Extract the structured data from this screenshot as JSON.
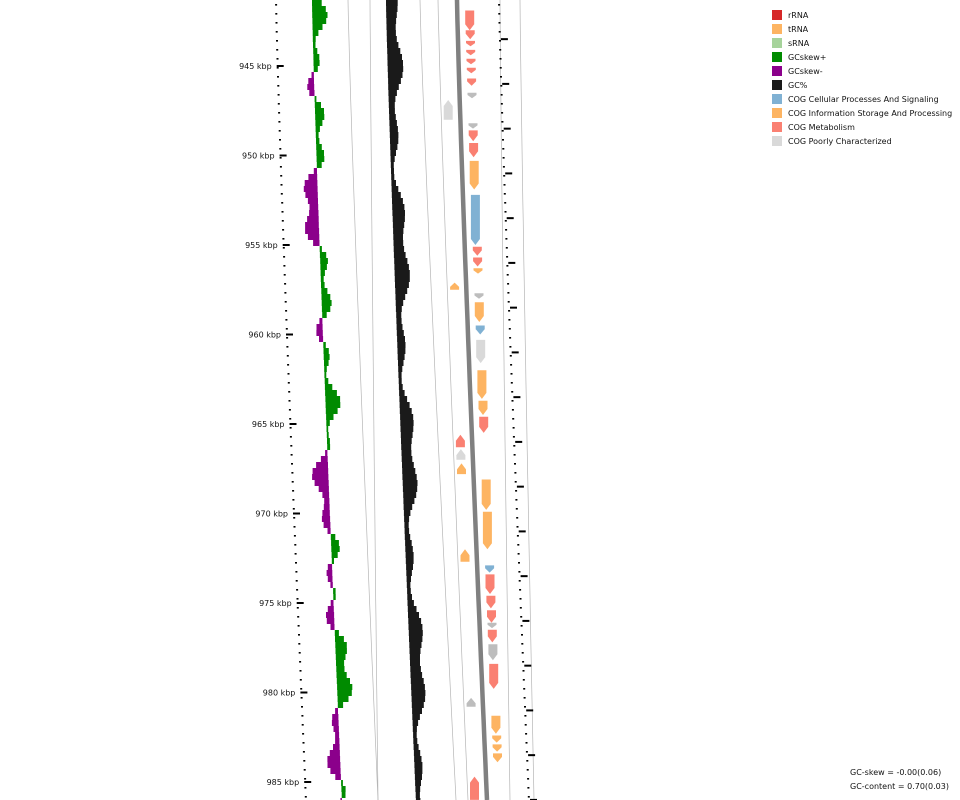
{
  "colors": {
    "rRNA": "#d62728",
    "tRNA": "#fdb462",
    "sRNA": "#a6d39b",
    "gc_skew_pos": "#008b00",
    "gc_skew_neg": "#8b008b",
    "gc_content": "#1a1a1a",
    "cog_cellular": "#80b1d3",
    "cog_information": "#fdb462",
    "cog_metabolism": "#fa8072",
    "cog_poorly": "#d9d9d9",
    "cog_unknown": "#bdbdbd",
    "backbone": "#808080"
  },
  "axis": {
    "ticks": [
      {
        "value": 945,
        "label": "945 kbp"
      },
      {
        "value": 950,
        "label": "950 kbp"
      },
      {
        "value": 955,
        "label": "955 kbp"
      },
      {
        "value": 960,
        "label": "960 kbp"
      },
      {
        "value": 965,
        "label": "965 kbp"
      },
      {
        "value": 970,
        "label": "970 kbp"
      },
      {
        "value": 975,
        "label": "975 kbp"
      },
      {
        "value": 980,
        "label": "980 kbp"
      },
      {
        "value": 985,
        "label": "985 kbp"
      }
    ]
  },
  "legend": [
    {
      "label": "rRNA",
      "color": "#d62728"
    },
    {
      "label": "tRNA",
      "color": "#fdb462"
    },
    {
      "label": "sRNA",
      "color": "#a6d39b"
    },
    {
      "label": "GCskew+",
      "color": "#008b00"
    },
    {
      "label": "GCskew-",
      "color": "#8b008b"
    },
    {
      "label": "GC%",
      "color": "#1a1a1a"
    },
    {
      "label": "COG Cellular Processes And Signaling",
      "color": "#80b1d3"
    },
    {
      "label": "COG Information Storage And Processing",
      "color": "#fdb462"
    },
    {
      "label": "COG Metabolism",
      "color": "#fa8072"
    },
    {
      "label": "COG Poorly Characterized",
      "color": "#d9d9d9"
    }
  ],
  "stats": {
    "gc_skew": "GC-skew = -0.00(0.06)",
    "gc_content": "GC-content = 0.70(0.03)"
  },
  "genes": [
    {
      "kbp": 941.0,
      "len": 0.4,
      "strand": -1,
      "cat": "metabolism"
    },
    {
      "kbp": 941.9,
      "len": 1.1,
      "strand": 1,
      "cat": "metabolism"
    },
    {
      "kbp": 943.0,
      "len": 0.5,
      "strand": 1,
      "cat": "metabolism"
    },
    {
      "kbp": 943.6,
      "len": 0.3,
      "strand": 1,
      "cat": "metabolism"
    },
    {
      "kbp": 944.1,
      "len": 0.3,
      "strand": 1,
      "cat": "metabolism"
    },
    {
      "kbp": 944.6,
      "len": 0.3,
      "strand": 1,
      "cat": "metabolism"
    },
    {
      "kbp": 945.1,
      "len": 0.3,
      "strand": 1,
      "cat": "metabolism"
    },
    {
      "kbp": 945.7,
      "len": 0.4,
      "strand": 1,
      "cat": "metabolism"
    },
    {
      "kbp": 946.5,
      "len": 0.3,
      "strand": 1,
      "cat": "unknown"
    },
    {
      "kbp": 946.9,
      "len": 1.1,
      "strand": -1,
      "cat": "poorly"
    },
    {
      "kbp": 948.2,
      "len": 0.3,
      "strand": 1,
      "cat": "unknown"
    },
    {
      "kbp": 948.6,
      "len": 0.6,
      "strand": 1,
      "cat": "metabolism"
    },
    {
      "kbp": 949.3,
      "len": 0.8,
      "strand": 1,
      "cat": "metabolism"
    },
    {
      "kbp": 950.3,
      "len": 1.6,
      "strand": 1,
      "cat": "information"
    },
    {
      "kbp": 952.2,
      "len": 2.8,
      "strand": 1,
      "cat": "cellular"
    },
    {
      "kbp": 955.1,
      "len": 0.5,
      "strand": 1,
      "cat": "metabolism"
    },
    {
      "kbp": 955.7,
      "len": 0.5,
      "strand": 1,
      "cat": "metabolism"
    },
    {
      "kbp": 956.3,
      "len": 0.3,
      "strand": 1,
      "cat": "information"
    },
    {
      "kbp": 957.1,
      "len": 0.4,
      "strand": -1,
      "cat": "information"
    },
    {
      "kbp": 957.7,
      "len": 0.3,
      "strand": 1,
      "cat": "unknown"
    },
    {
      "kbp": 958.2,
      "len": 1.1,
      "strand": 1,
      "cat": "information"
    },
    {
      "kbp": 959.5,
      "len": 0.5,
      "strand": 1,
      "cat": "cellular"
    },
    {
      "kbp": 960.3,
      "len": 1.3,
      "strand": 1,
      "cat": "poorly"
    },
    {
      "kbp": 962.0,
      "len": 1.6,
      "strand": 1,
      "cat": "information"
    },
    {
      "kbp": 963.7,
      "len": 0.8,
      "strand": 1,
      "cat": "information"
    },
    {
      "kbp": 964.6,
      "len": 0.9,
      "strand": 1,
      "cat": "metabolism"
    },
    {
      "kbp": 965.6,
      "len": 0.7,
      "strand": -1,
      "cat": "metabolism"
    },
    {
      "kbp": 966.4,
      "len": 0.6,
      "strand": -1,
      "cat": "poorly"
    },
    {
      "kbp": 967.2,
      "len": 0.6,
      "strand": -1,
      "cat": "information"
    },
    {
      "kbp": 968.1,
      "len": 1.7,
      "strand": 1,
      "cat": "information"
    },
    {
      "kbp": 969.9,
      "len": 2.1,
      "strand": 1,
      "cat": "information"
    },
    {
      "kbp": 972.0,
      "len": 0.7,
      "strand": -1,
      "cat": "information"
    },
    {
      "kbp": 972.9,
      "len": 0.4,
      "strand": 1,
      "cat": "cellular"
    },
    {
      "kbp": 973.4,
      "len": 1.1,
      "strand": 1,
      "cat": "metabolism"
    },
    {
      "kbp": 974.6,
      "len": 0.7,
      "strand": 1,
      "cat": "metabolism"
    },
    {
      "kbp": 975.4,
      "len": 0.7,
      "strand": 1,
      "cat": "metabolism"
    },
    {
      "kbp": 976.1,
      "len": 0.3,
      "strand": 1,
      "cat": "unknown"
    },
    {
      "kbp": 976.5,
      "len": 0.7,
      "strand": 1,
      "cat": "metabolism"
    },
    {
      "kbp": 977.3,
      "len": 0.9,
      "strand": 1,
      "cat": "unknown"
    },
    {
      "kbp": 978.4,
      "len": 1.4,
      "strand": 1,
      "cat": "metabolism"
    },
    {
      "kbp": 980.3,
      "len": 0.5,
      "strand": -1,
      "cat": "unknown"
    },
    {
      "kbp": 981.3,
      "len": 1.0,
      "strand": 1,
      "cat": "information"
    },
    {
      "kbp": 982.4,
      "len": 0.4,
      "strand": 1,
      "cat": "information"
    },
    {
      "kbp": 982.9,
      "len": 0.4,
      "strand": 1,
      "cat": "information"
    },
    {
      "kbp": 983.4,
      "len": 0.5,
      "strand": 1,
      "cat": "information"
    },
    {
      "kbp": 984.7,
      "len": 1.3,
      "strand": -1,
      "cat": "metabolism"
    }
  ]
}
